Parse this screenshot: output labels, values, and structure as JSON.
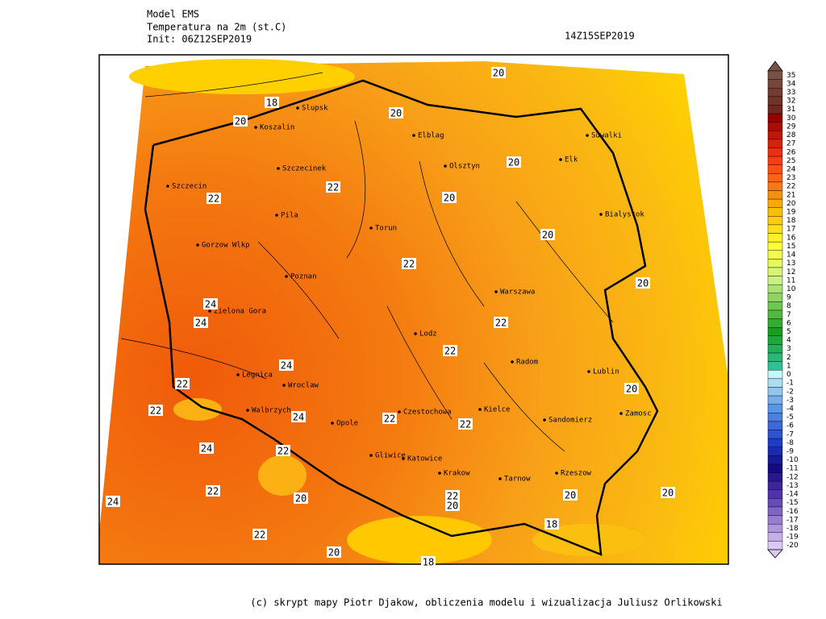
{
  "header": {
    "model": "Model EMS",
    "variable": "Temperatura na 2m (st.C)",
    "init": "Init: 06Z12SEP2019",
    "valid": "14Z15SEP2019"
  },
  "cities": [
    "Slupsk",
    "Koszalin",
    "Elblag",
    "Olsztyn",
    "Suwalki",
    "Elk",
    "Szczecinek",
    "Szczecin",
    "Bialystok",
    "Pila",
    "Torun",
    "Gorzow Wlkp",
    "Poznan",
    "Warszawa",
    "Zielona Gora",
    "Lodz",
    "Radom",
    "Lublin",
    "Legnica",
    "Wroclaw",
    "Kielce",
    "Zamosc",
    "Walbrzych",
    "Opole",
    "Czestochowa",
    "Sandomierz",
    "Gliwice",
    "Katowice",
    "Krakow",
    "Tarnow",
    "Rzeszow"
  ],
  "contour_labels": [
    18,
    20,
    20,
    20,
    20,
    22,
    22,
    20,
    20,
    22,
    20,
    24,
    24,
    22,
    22,
    24,
    22,
    20,
    22,
    24,
    22,
    22,
    24,
    22,
    22,
    20,
    24,
    22,
    20,
    20,
    20,
    18,
    22,
    20,
    18
  ],
  "colorbar": {
    "labels": [
      35,
      34,
      33,
      32,
      31,
      30,
      29,
      28,
      27,
      26,
      25,
      24,
      23,
      22,
      21,
      20,
      19,
      18,
      17,
      16,
      15,
      14,
      13,
      12,
      11,
      10,
      9,
      8,
      7,
      6,
      5,
      4,
      3,
      2,
      1,
      0,
      -1,
      -2,
      -3,
      -4,
      -5,
      -6,
      -7,
      -8,
      -9,
      -10,
      -11,
      -12,
      -13,
      -14,
      -15,
      -16,
      -17,
      -18,
      -19,
      -20
    ]
  },
  "footer": "(c) skrypt mapy Piotr Djakow, obliczenia modelu i wizualizacja Juliusz Orlikowski"
}
